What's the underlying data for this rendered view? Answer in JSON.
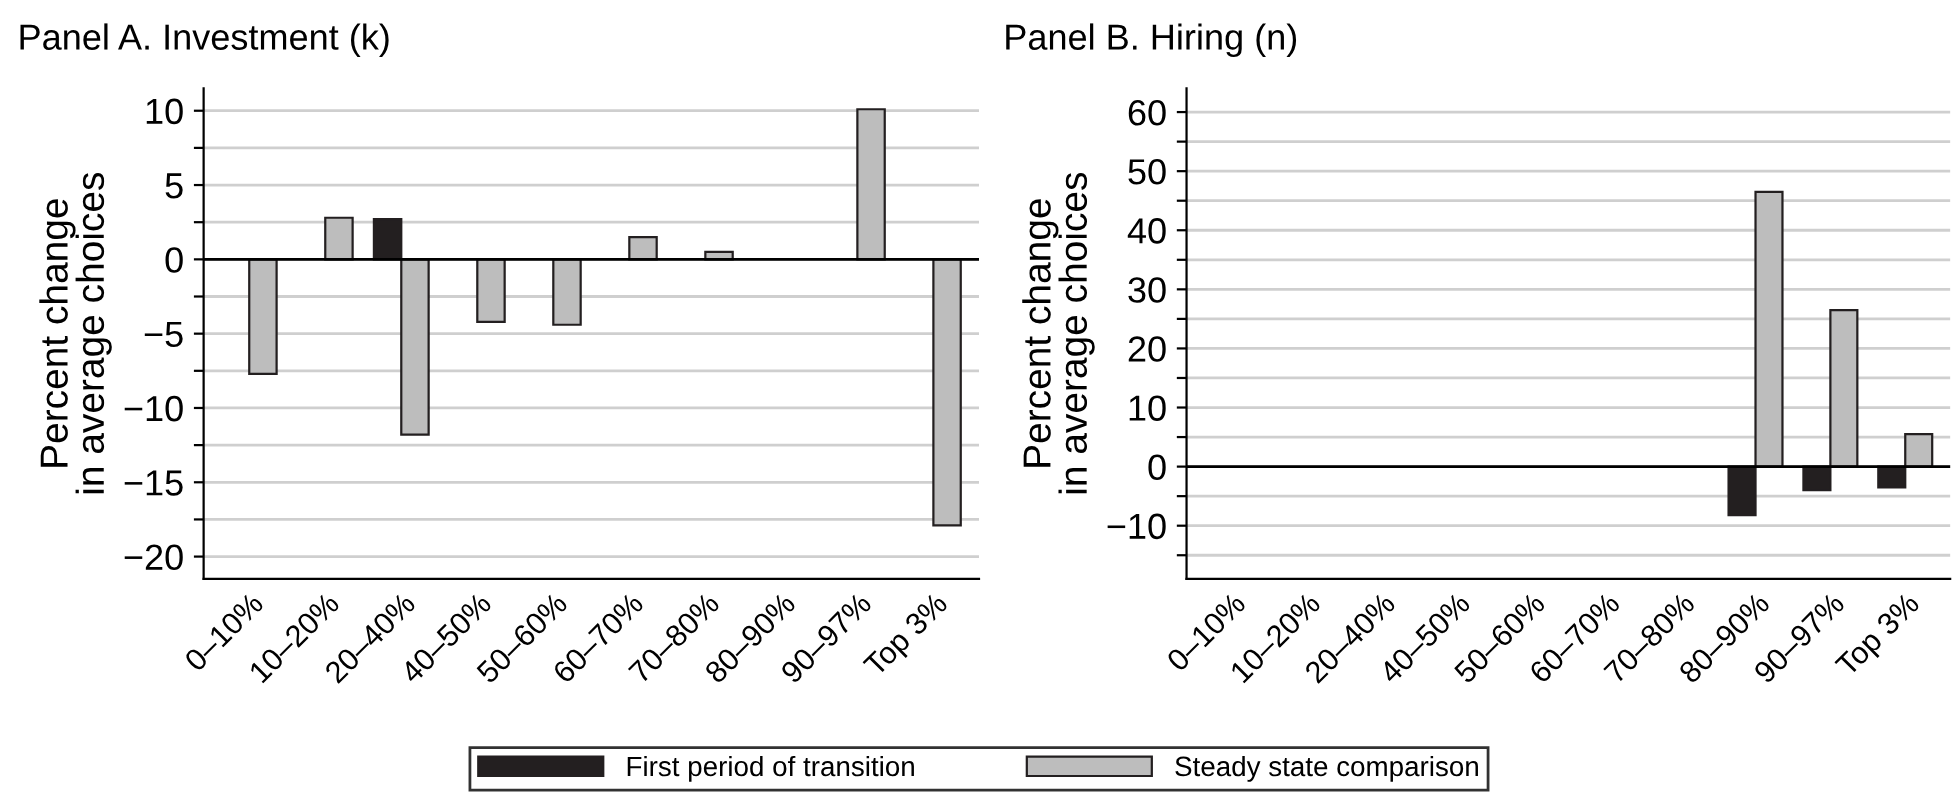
{
  "chart_data": [
    {
      "type": "bar",
      "title": "Panel A. Investment (k)",
      "ylabel": "Percent change\nin average choices",
      "categories": [
        "0–10%",
        "10–20%",
        "20–40%",
        "40–50%",
        "50–60%",
        "60–70%",
        "70–80%",
        "80–90%",
        "90–97%",
        "Top 3%"
      ],
      "series": [
        {
          "name": "First period of transition",
          "color": "#231f20",
          "values": [
            0,
            0,
            2.7,
            0,
            0,
            0,
            0,
            0,
            0,
            0
          ]
        },
        {
          "name": "Steady state comparison",
          "color": "#bdbdbd",
          "values": [
            -7.7,
            2.8,
            -11.8,
            -4.2,
            -4.4,
            1.5,
            0.5,
            0,
            10.1,
            -17.9
          ]
        }
      ],
      "ylim": [
        -21.5,
        11.5
      ],
      "yticks": [
        {
          "value": -20,
          "label": "−20"
        },
        {
          "value": -17.5,
          "label": null
        },
        {
          "value": -15,
          "label": "−15"
        },
        {
          "value": -12.5,
          "label": null
        },
        {
          "value": -10,
          "label": "−10"
        },
        {
          "value": -7.5,
          "label": null
        },
        {
          "value": -5,
          "label": "−5"
        },
        {
          "value": -2.5,
          "label": null
        },
        0,
        {
          "value": 2.5,
          "label": null
        },
        5,
        {
          "value": 7.5,
          "label": null
        },
        10
      ],
      "ref_lines": [
        {
          "axis": "y",
          "value": 0,
          "color": "#000000"
        }
      ],
      "grid": "y",
      "legend": "bottom"
    },
    {
      "type": "bar",
      "title": "Panel B. Hiring (n)",
      "ylabel": "Percent change\nin average choices",
      "categories": [
        "0–10%",
        "10–20%",
        "20–40%",
        "40–50%",
        "50–60%",
        "60–70%",
        "70–80%",
        "80–90%",
        "90–97%",
        "Top 3%"
      ],
      "series": [
        {
          "color": "#231f20",
          "values": [
            0,
            0,
            0,
            0,
            0,
            0,
            0,
            -8.2,
            -4.0,
            -3.5
          ]
        },
        {
          "color": "#bdbdbd",
          "values": [
            0,
            0,
            0,
            0,
            0,
            0,
            0,
            46.5,
            26.5,
            5.5
          ]
        }
      ],
      "ylim": [
        -19,
        64
      ],
      "yticks": [
        {
          "value": -15,
          "label": null
        },
        {
          "value": -10,
          "label": "−10"
        },
        {
          "value": -5,
          "label": null
        },
        0,
        {
          "value": 5,
          "label": null
        },
        10,
        {
          "value": 15,
          "label": null
        },
        20,
        {
          "value": 25,
          "label": null
        },
        30,
        {
          "value": 35,
          "label": null
        },
        40,
        {
          "value": 45,
          "label": null
        },
        50,
        {
          "value": 55,
          "label": null
        },
        60
      ],
      "ref_lines": [
        {
          "axis": "y",
          "value": 0,
          "color": "#000000"
        }
      ],
      "grid": "y"
    }
  ]
}
